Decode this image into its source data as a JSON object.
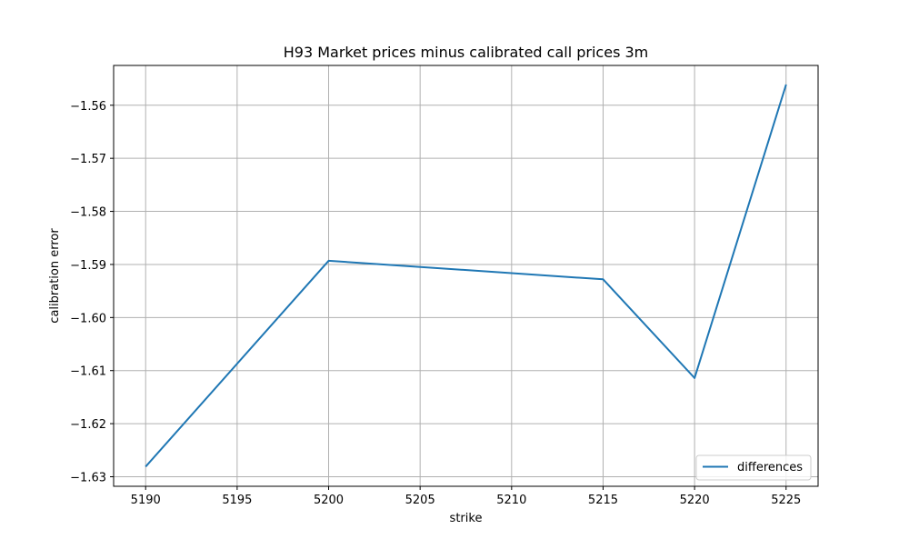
{
  "chart_data": {
    "type": "line",
    "title": "H93 Market prices minus calibrated call prices 3m",
    "xlabel": "strike",
    "ylabel": "calibration error",
    "x": [
      5190,
      5200,
      5215,
      5220,
      5225
    ],
    "series": [
      {
        "name": "differences",
        "color": "#1f77b4",
        "values": [
          -1.6281,
          -1.5893,
          -1.5928,
          -1.6114,
          -1.5561
        ]
      }
    ],
    "xlim": [
      5188.25,
      5226.75
    ],
    "ylim": [
      -1.6318,
      -1.5525
    ],
    "xticks": [
      5190,
      5195,
      5200,
      5205,
      5210,
      5215,
      5220,
      5225
    ],
    "xtick_labels": [
      "5190",
      "5195",
      "5200",
      "5205",
      "5210",
      "5215",
      "5220",
      "5225"
    ],
    "yticks": [
      -1.63,
      -1.62,
      -1.61,
      -1.6,
      -1.59,
      -1.58,
      -1.57,
      -1.56
    ],
    "ytick_labels": [
      "−1.63",
      "−1.62",
      "−1.61",
      "−1.60",
      "−1.59",
      "−1.58",
      "−1.57",
      "−1.56"
    ],
    "grid": true,
    "legend_position": "lower-right"
  }
}
